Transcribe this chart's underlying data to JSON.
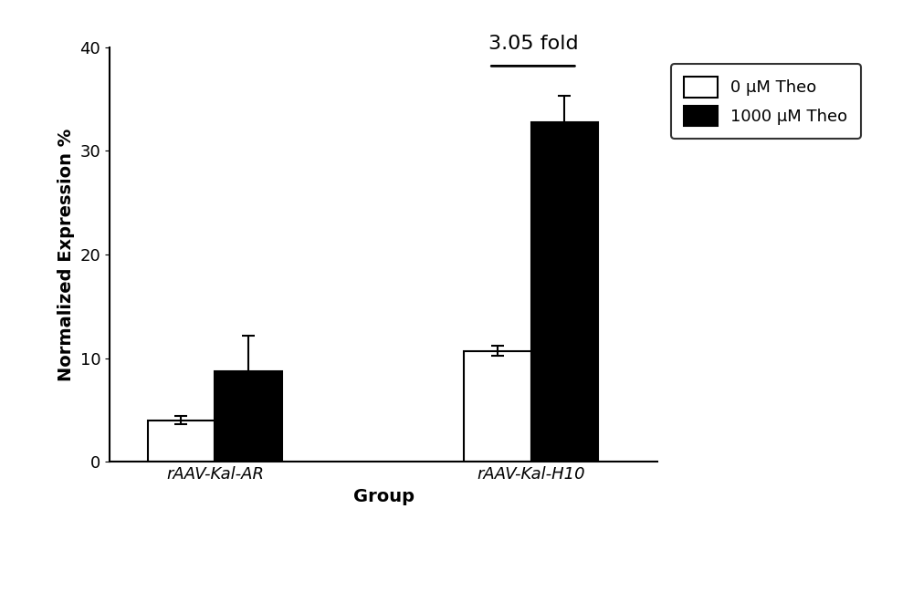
{
  "groups": [
    "rAAV-Kal-AR",
    "rAAV-Kal-H10"
  ],
  "bar_values_0uM": [
    4.0,
    10.7
  ],
  "bar_values_1000uM": [
    8.7,
    32.8
  ],
  "error_0uM": [
    0.4,
    0.5
  ],
  "error_1000uM": [
    3.5,
    2.5
  ],
  "bar_width": 0.32,
  "group_positions": [
    1.0,
    2.5
  ],
  "ylim": [
    0,
    40
  ],
  "yticks": [
    0,
    10,
    20,
    30,
    40
  ],
  "ylabel": "Normalized Expression %",
  "xlabel": "Group",
  "legend_labels": [
    "0 μM Theo",
    "1000 μM Theo"
  ],
  "fold_text": "3.05 fold",
  "color_0uM": "#ffffff",
  "color_1000uM": "#000000",
  "edgecolor": "#000000",
  "background_color": "#ffffff",
  "capsize": 5,
  "linewidth": 1.5,
  "title_fontsize": 16,
  "label_fontsize": 14,
  "tick_fontsize": 13,
  "legend_fontsize": 13
}
